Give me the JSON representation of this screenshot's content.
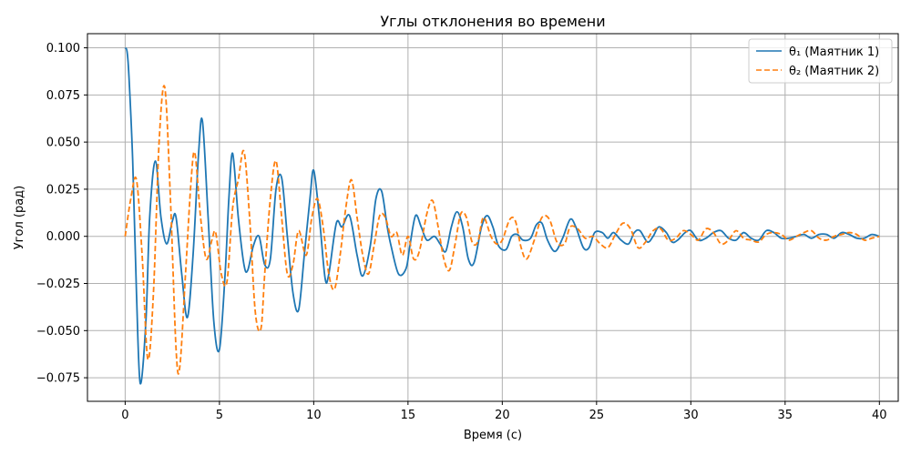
{
  "chart_data": {
    "type": "line",
    "title": "Углы отклонения во времени",
    "xlabel": "Время (с)",
    "ylabel": "Угол (рад)",
    "xlim": [
      -2,
      41
    ],
    "ylim": [
      -0.0875,
      0.1075
    ],
    "xticks": [
      0,
      5,
      10,
      15,
      20,
      25,
      30,
      35,
      40
    ],
    "xtick_labels": [
      "0",
      "5",
      "10",
      "15",
      "20",
      "25",
      "30",
      "35",
      "40"
    ],
    "yticks": [
      -0.075,
      -0.05,
      -0.025,
      0.0,
      0.025,
      0.05,
      0.075,
      0.1
    ],
    "ytick_labels": [
      "−0.075",
      "−0.050",
      "−0.025",
      "0.000",
      "0.025",
      "0.050",
      "0.075",
      "0.100"
    ],
    "grid": true,
    "legend_position": "top-right",
    "series": [
      {
        "name": "θ₁ (Маятник 1)",
        "color": "#1f77b4",
        "style": "solid",
        "x": [
          0.0,
          0.1,
          0.2,
          0.4,
          0.6,
          0.8,
          1.1,
          1.3,
          1.6,
          1.9,
          2.2,
          2.5,
          2.7,
          3.0,
          3.3,
          3.6,
          3.9,
          4.1,
          4.4,
          4.7,
          5.0,
          5.3,
          5.5,
          5.7,
          6.0,
          6.3,
          6.5,
          6.8,
          7.1,
          7.4,
          7.7,
          8.0,
          8.3,
          8.6,
          8.9,
          9.2,
          9.5,
          9.8,
          10.0,
          10.3,
          10.6,
          10.8,
          11.2,
          11.5,
          11.9,
          12.3,
          12.6,
          13.0,
          13.3,
          13.6,
          13.9,
          14.1,
          14.5,
          14.9,
          15.1,
          15.4,
          15.7,
          16.0,
          16.4,
          16.7,
          17.0,
          17.3,
          17.6,
          17.9,
          18.2,
          18.5,
          18.9,
          19.2,
          19.5,
          19.8,
          20.2,
          20.5,
          20.8,
          21.1,
          21.5,
          21.8,
          22.1,
          22.4,
          22.8,
          23.2,
          23.6,
          23.9,
          24.3,
          24.6,
          24.9,
          25.3,
          25.6,
          25.9,
          26.3,
          26.7,
          27.0,
          27.3,
          27.7,
          28.0,
          28.3,
          28.7,
          29.0,
          29.3,
          29.7,
          30.0,
          30.4,
          30.8,
          31.2,
          31.6,
          32.0,
          32.4,
          32.8,
          33.2,
          33.6,
          34.0,
          34.4,
          34.8,
          35.2,
          35.6,
          36.0,
          36.4,
          36.8,
          37.2,
          37.6,
          38.0,
          38.4,
          38.8,
          39.2,
          39.6,
          40.0
        ],
        "values": [
          0.1,
          0.098,
          0.085,
          0.04,
          -0.03,
          -0.078,
          -0.045,
          0.01,
          0.04,
          0.01,
          -0.004,
          0.008,
          0.01,
          -0.02,
          -0.043,
          -0.01,
          0.045,
          0.061,
          0.01,
          -0.045,
          -0.06,
          -0.02,
          0.02,
          0.044,
          0.01,
          -0.015,
          -0.018,
          -0.005,
          0.0,
          -0.015,
          -0.012,
          0.025,
          0.031,
          0.0,
          -0.03,
          -0.039,
          -0.01,
          0.02,
          0.035,
          0.01,
          -0.022,
          -0.02,
          0.007,
          0.005,
          0.011,
          -0.01,
          -0.021,
          -0.005,
          0.02,
          0.024,
          0.005,
          -0.005,
          -0.02,
          -0.017,
          -0.005,
          0.011,
          0.005,
          -0.002,
          0.0,
          -0.004,
          -0.008,
          0.005,
          0.013,
          0.005,
          -0.012,
          -0.014,
          0.005,
          0.011,
          0.005,
          -0.005,
          -0.007,
          0.0,
          0.001,
          -0.002,
          -0.001,
          0.006,
          0.007,
          -0.002,
          -0.008,
          -0.001,
          0.009,
          0.005,
          -0.006,
          -0.006,
          0.002,
          0.002,
          -0.001,
          0.002,
          -0.002,
          -0.004,
          0.002,
          0.003,
          -0.003,
          0.0,
          0.005,
          0.002,
          -0.003,
          -0.002,
          0.002,
          0.003,
          -0.002,
          -0.001,
          0.002,
          0.003,
          -0.001,
          -0.002,
          0.002,
          -0.001,
          -0.002,
          0.003,
          0.002,
          -0.001,
          -0.001,
          0.0,
          0.001,
          -0.001,
          0.001,
          0.001,
          -0.001,
          0.002,
          0.001,
          -0.001,
          -0.001,
          0.001,
          0.0
        ]
      },
      {
        "name": "θ₂ (Маятник 2)",
        "color": "#ff7f0e",
        "style": "dashed",
        "x": [
          0.0,
          0.3,
          0.6,
          0.9,
          1.2,
          1.5,
          1.8,
          2.1,
          2.4,
          2.7,
          2.9,
          3.2,
          3.5,
          3.7,
          4.0,
          4.3,
          4.6,
          4.8,
          5.1,
          5.4,
          5.7,
          6.0,
          6.3,
          6.6,
          6.9,
          7.2,
          7.4,
          7.7,
          8.0,
          8.3,
          8.6,
          8.9,
          9.2,
          9.6,
          9.9,
          10.2,
          10.5,
          10.8,
          11.1,
          11.4,
          11.7,
          12.0,
          12.3,
          12.6,
          12.9,
          13.2,
          13.5,
          13.8,
          14.1,
          14.4,
          14.7,
          15.0,
          15.3,
          15.6,
          16.0,
          16.3,
          16.6,
          16.9,
          17.2,
          17.5,
          17.8,
          18.1,
          18.4,
          18.7,
          19.0,
          19.4,
          19.7,
          20.0,
          20.4,
          20.7,
          21.0,
          21.3,
          21.7,
          22.1,
          22.5,
          22.9,
          23.3,
          23.6,
          24.0,
          24.4,
          24.8,
          25.2,
          25.6,
          26.0,
          26.4,
          26.8,
          27.2,
          27.6,
          28.0,
          28.4,
          28.8,
          29.2,
          29.6,
          30.0,
          30.4,
          30.8,
          31.2,
          31.6,
          32.0,
          32.4,
          32.8,
          33.2,
          33.6,
          34.0,
          34.4,
          34.8,
          35.2,
          35.6,
          36.0,
          36.4,
          36.8,
          37.2,
          37.6,
          38.0,
          38.4,
          38.8,
          39.2,
          39.6,
          40.0
        ],
        "values": [
          0.0,
          0.02,
          0.03,
          -0.01,
          -0.065,
          -0.03,
          0.05,
          0.079,
          0.02,
          -0.06,
          -0.069,
          -0.02,
          0.03,
          0.044,
          0.01,
          -0.012,
          -0.002,
          0.002,
          -0.02,
          -0.024,
          0.015,
          0.03,
          0.045,
          0.01,
          -0.04,
          -0.049,
          -0.02,
          0.02,
          0.04,
          0.01,
          -0.02,
          -0.015,
          0.003,
          -0.01,
          0.01,
          0.02,
          0.005,
          -0.02,
          -0.028,
          -0.01,
          0.015,
          0.03,
          0.01,
          -0.01,
          -0.02,
          -0.005,
          0.011,
          0.01,
          0.0,
          0.002,
          -0.01,
          0.0,
          -0.012,
          -0.008,
          0.012,
          0.019,
          0.005,
          -0.012,
          -0.018,
          -0.004,
          0.012,
          0.01,
          -0.003,
          -0.003,
          0.01,
          0.0,
          -0.004,
          -0.002,
          0.009,
          0.008,
          -0.006,
          -0.012,
          -0.002,
          0.01,
          0.009,
          -0.003,
          -0.004,
          0.005,
          0.004,
          -0.001,
          0.0,
          -0.004,
          -0.006,
          0.001,
          0.007,
          0.004,
          -0.006,
          -0.003,
          0.003,
          0.004,
          -0.002,
          -0.001,
          0.003,
          0.001,
          -0.002,
          0.004,
          0.002,
          -0.004,
          -0.002,
          0.003,
          -0.001,
          -0.002,
          -0.003,
          0.001,
          0.002,
          0.001,
          -0.002,
          0.0,
          0.002,
          0.003,
          -0.001,
          -0.002,
          0.0,
          0.001,
          0.002,
          0.001,
          -0.002,
          -0.001,
          0.0
        ]
      }
    ]
  }
}
